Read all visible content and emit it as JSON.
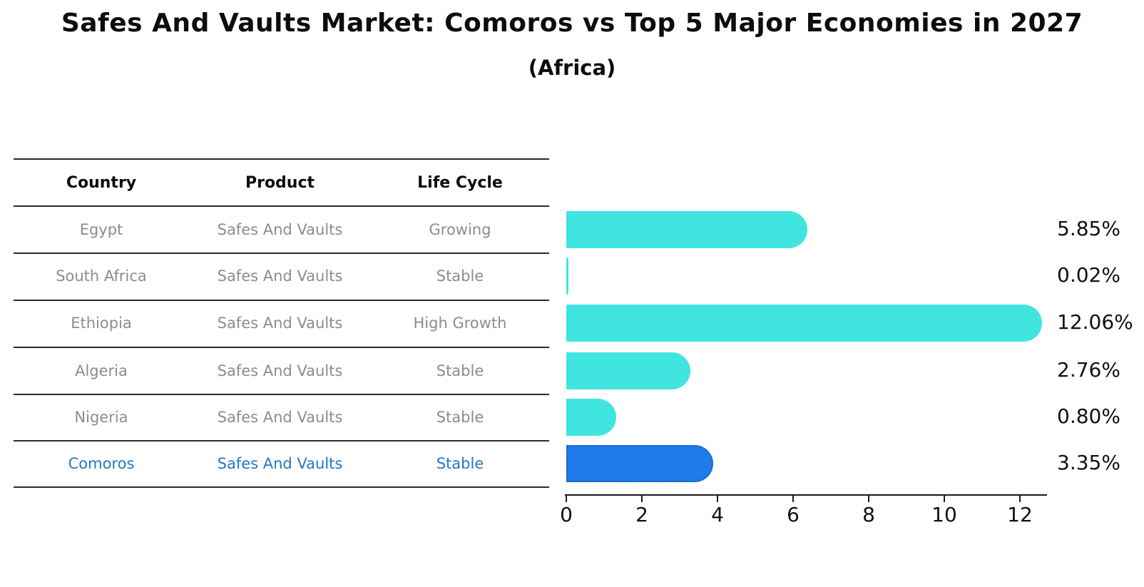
{
  "chart_data": {
    "type": "bar",
    "orientation": "horizontal",
    "title": "Safes And Vaults Market: Comoros vs Top 5 Major Economies in 2027",
    "subtitle": "(Africa)",
    "categories": [
      "Egypt",
      "South Africa",
      "Ethiopia",
      "Algeria",
      "Nigeria",
      "Comoros"
    ],
    "values": [
      5.85,
      0.02,
      12.06,
      2.76,
      0.8,
      3.35
    ],
    "value_labels": [
      "5.85%",
      "0.02%",
      "12.06%",
      "2.76%",
      "0.80%",
      "3.35%"
    ],
    "xticks": [
      "0",
      "2",
      "4",
      "6",
      "8",
      "10",
      "12"
    ],
    "xlim": [
      0,
      12.7
    ],
    "grid": false,
    "legend": "none",
    "bar_color": "#40E5E0",
    "highlight_color": "#1E7BE8",
    "highlight_border_color": "#1060C8",
    "highlight_index": 5
  },
  "table": {
    "headers": [
      "Country",
      "Product",
      "Life Cycle"
    ],
    "rows": [
      {
        "country": "Egypt",
        "product": "Safes And Vaults",
        "life_cycle": "Growing",
        "highlight": false
      },
      {
        "country": "South Africa",
        "product": "Safes And Vaults",
        "life_cycle": "Stable",
        "highlight": false
      },
      {
        "country": "Ethiopia",
        "product": "Safes And Vaults",
        "life_cycle": "High Growth",
        "highlight": false
      },
      {
        "country": "Algeria",
        "product": "Safes And Vaults",
        "life_cycle": "Stable",
        "highlight": false
      },
      {
        "country": "Nigeria",
        "product": "Safes And Vaults",
        "life_cycle": "Stable",
        "highlight": false
      },
      {
        "country": "Comoros",
        "product": "Safes And Vaults",
        "life_cycle": "Stable",
        "highlight": true
      }
    ],
    "text_color": "#8c8c8c",
    "highlight_text_color": "#2878BE"
  }
}
